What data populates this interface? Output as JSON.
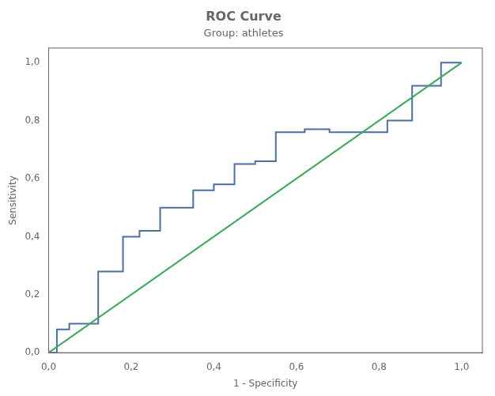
{
  "chart_data": {
    "type": "line",
    "title": "ROC Curve",
    "subtitle": "Group: athletes",
    "xlabel": "1 - Specificity",
    "ylabel": "Sensitivity",
    "xlim": [
      0.0,
      1.05
    ],
    "ylim": [
      0.0,
      1.05
    ],
    "xticks": [
      {
        "value": 0.0,
        "label": "0,0"
      },
      {
        "value": 0.2,
        "label": "0,2"
      },
      {
        "value": 0.4,
        "label": "0,4"
      },
      {
        "value": 0.6,
        "label": "0,6"
      },
      {
        "value": 0.8,
        "label": "0,8"
      },
      {
        "value": 1.0,
        "label": "1,0"
      }
    ],
    "yticks": [
      {
        "value": 0.0,
        "label": "0,0"
      },
      {
        "value": 0.2,
        "label": "0,2"
      },
      {
        "value": 0.4,
        "label": "0,4"
      },
      {
        "value": 0.6,
        "label": "0,6"
      },
      {
        "value": 0.8,
        "label": "0,8"
      },
      {
        "value": 1.0,
        "label": "1,0"
      }
    ],
    "grid": false,
    "series": [
      {
        "color": "#3aaa5a",
        "x": [
          0,
          1
        ],
        "values": [
          0,
          1
        ]
      },
      {
        "color": "#4a6fa5",
        "x": [
          0.0,
          0.02,
          0.02,
          0.05,
          0.05,
          0.12,
          0.12,
          0.18,
          0.18,
          0.22,
          0.22,
          0.27,
          0.27,
          0.35,
          0.35,
          0.4,
          0.4,
          0.45,
          0.45,
          0.5,
          0.5,
          0.55,
          0.55,
          0.62,
          0.62,
          0.68,
          0.68,
          0.82,
          0.82,
          0.88,
          0.88,
          0.95,
          0.95,
          1.0
        ],
        "values": [
          0.0,
          0.0,
          0.08,
          0.08,
          0.1,
          0.1,
          0.28,
          0.28,
          0.4,
          0.4,
          0.42,
          0.42,
          0.5,
          0.5,
          0.56,
          0.56,
          0.58,
          0.58,
          0.65,
          0.65,
          0.66,
          0.66,
          0.76,
          0.76,
          0.77,
          0.77,
          0.76,
          0.76,
          0.8,
          0.8,
          0.92,
          0.92,
          1.0,
          1.0
        ]
      }
    ]
  }
}
